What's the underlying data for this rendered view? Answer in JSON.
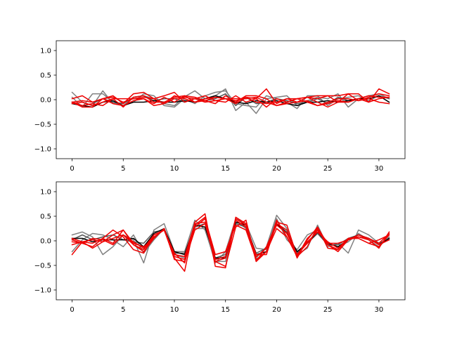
{
  "chart_data": [
    {
      "type": "line",
      "title": "",
      "xlabel": "",
      "ylabel": "",
      "xlim": [
        -1.55,
        32.55
      ],
      "ylim": [
        -1.2,
        1.2
      ],
      "xticks": [
        0,
        5,
        10,
        15,
        20,
        25,
        30
      ],
      "yticks": [
        -1.0,
        -0.5,
        0.0,
        0.5,
        1.0
      ],
      "xtick_labels": [
        "0",
        "5",
        "10",
        "15",
        "20",
        "25",
        "30"
      ],
      "ytick_labels": [
        "−1.0",
        "−0.5",
        "0.0",
        "0.5",
        "1.0"
      ],
      "grid": false,
      "x": [
        0,
        1,
        2,
        3,
        4,
        5,
        6,
        7,
        8,
        9,
        10,
        11,
        12,
        13,
        14,
        15,
        16,
        17,
        18,
        19,
        20,
        21,
        22,
        23,
        24,
        25,
        26,
        27,
        28,
        29,
        30,
        31
      ],
      "series": [
        {
          "color": "#808080",
          "values": [
            0.15,
            -0.05,
            -0.12,
            0.18,
            -0.08,
            -0.12,
            0.05,
            0.08,
            0.02,
            -0.08,
            -0.12,
            0.06,
            0.18,
            0.02,
            0.08,
            0.22,
            -0.22,
            -0.05,
            -0.28,
            0.02,
            0.05,
            0.08,
            -0.12,
            -0.02,
            0.05,
            0.02,
            0.12,
            -0.15,
            0.02,
            0.08,
            0.12,
            0.02
          ]
        },
        {
          "color": "#808080",
          "values": [
            0.05,
            -0.15,
            0.12,
            0.12,
            -0.05,
            -0.12,
            -0.05,
            0.12,
            0.08,
            -0.12,
            -0.15,
            0.02,
            -0.08,
            0.08,
            0.15,
            0.18,
            -0.08,
            -0.12,
            -0.15,
            0.08,
            0.02,
            -0.05,
            -0.18,
            0.08,
            0.08,
            -0.12,
            0.02,
            0.05,
            0.08,
            -0.02,
            0.08,
            -0.05
          ]
        },
        {
          "color": "#555555",
          "values": [
            -0.05,
            -0.12,
            -0.08,
            0.02,
            -0.05,
            -0.08,
            0.05,
            0.08,
            -0.02,
            0.02,
            0.02,
            -0.05,
            0.02,
            -0.02,
            0.02,
            0.12,
            -0.12,
            0.05,
            -0.08,
            -0.05,
            0.02,
            -0.02,
            -0.08,
            -0.05,
            0.02,
            -0.08,
            0.05,
            -0.02,
            0.02,
            0.02,
            0.08,
            0.02
          ]
        },
        {
          "color": "#000000",
          "values": [
            -0.08,
            -0.12,
            -0.15,
            -0.05,
            -0.02,
            -0.12,
            -0.05,
            -0.05,
            -0.02,
            -0.05,
            -0.05,
            -0.02,
            -0.05,
            0.02,
            0.08,
            0.02,
            -0.05,
            -0.08,
            -0.02,
            -0.05,
            -0.02,
            -0.08,
            -0.12,
            -0.05,
            -0.05,
            -0.02,
            -0.05,
            -0.02,
            0.02,
            0.02,
            0.08,
            -0.05
          ]
        },
        {
          "color": "#ee0000",
          "values": [
            -0.05,
            -0.15,
            -0.15,
            0.02,
            0.08,
            -0.08,
            0.12,
            0.15,
            0.02,
            0.08,
            0.15,
            -0.05,
            0.02,
            0.08,
            -0.02,
            -0.05,
            0.08,
            -0.05,
            0.02,
            0.22,
            -0.08,
            0.02,
            -0.05,
            0.05,
            0.08,
            0.08,
            0.08,
            0.12,
            0.12,
            -0.05,
            0.22,
            0.12
          ]
        },
        {
          "color": "#ee0000",
          "values": [
            0.02,
            0.08,
            -0.05,
            0.02,
            0.05,
            -0.05,
            0.02,
            0.02,
            -0.08,
            0.05,
            -0.05,
            0.08,
            0.05,
            -0.02,
            -0.08,
            0.08,
            -0.05,
            0.08,
            0.08,
            0.02,
            -0.12,
            -0.05,
            0.02,
            0.05,
            0.02,
            0.08,
            -0.05,
            -0.05,
            0.02,
            0.08,
            0.05,
            0.05
          ]
        },
        {
          "color": "#ee0000",
          "values": [
            -0.05,
            -0.02,
            -0.05,
            0.02,
            -0.08,
            -0.12,
            -0.02,
            0.02,
            -0.12,
            -0.08,
            0.08,
            0.02,
            -0.05,
            0.02,
            0.05,
            0.02,
            0.02,
            0.02,
            0.05,
            -0.05,
            -0.12,
            -0.08,
            -0.05,
            -0.02,
            -0.12,
            -0.05,
            0.02,
            0.02,
            -0.02,
            0.02,
            -0.05,
            -0.08
          ]
        },
        {
          "color": "#ee0000",
          "values": [
            -0.08,
            -0.05,
            -0.12,
            -0.05,
            0.02,
            0.02,
            0.02,
            0.05,
            0.02,
            -0.08,
            0.02,
            0.05,
            0.02,
            -0.05,
            -0.02,
            0.02,
            -0.02,
            0.05,
            -0.05,
            -0.08,
            -0.05,
            0.02,
            0.02,
            -0.05,
            -0.12,
            -0.08,
            -0.02,
            -0.05,
            0.02,
            -0.05,
            0.02,
            0.05
          ]
        },
        {
          "color": "#ee0000",
          "values": [
            -0.05,
            -0.12,
            -0.08,
            -0.12,
            0.02,
            -0.15,
            0.05,
            0.08,
            -0.05,
            -0.05,
            0.05,
            0.08,
            -0.05,
            -0.02,
            0.05,
            0.02,
            -0.08,
            0.05,
            0.02,
            -0.15,
            0.02,
            -0.05,
            0.02,
            0.05,
            -0.05,
            -0.15,
            -0.05,
            0.12,
            -0.02,
            0.05,
            0.12,
            0.08
          ]
        }
      ]
    },
    {
      "type": "line",
      "title": "",
      "xlabel": "",
      "ylabel": "",
      "xlim": [
        -1.55,
        32.55
      ],
      "ylim": [
        -1.2,
        1.2
      ],
      "xticks": [
        0,
        5,
        10,
        15,
        20,
        25,
        30
      ],
      "yticks": [
        -1.0,
        -0.5,
        0.0,
        0.5,
        1.0
      ],
      "xtick_labels": [
        "0",
        "5",
        "10",
        "15",
        "20",
        "25",
        "30"
      ],
      "ytick_labels": [
        "−1.0",
        "−0.5",
        "0.0",
        "0.5",
        "1.0"
      ],
      "grid": false,
      "x": [
        0,
        1,
        2,
        3,
        4,
        5,
        6,
        7,
        8,
        9,
        10,
        11,
        12,
        13,
        14,
        15,
        16,
        17,
        18,
        19,
        20,
        21,
        22,
        23,
        24,
        25,
        26,
        27,
        28,
        29,
        30,
        31
      ],
      "series": [
        {
          "color": "#808080",
          "values": [
            0.12,
            0.18,
            0.08,
            -0.28,
            -0.12,
            0.12,
            0.02,
            -0.45,
            0.22,
            0.35,
            -0.22,
            -0.22,
            0.42,
            0.22,
            -0.42,
            -0.42,
            0.42,
            0.25,
            -0.35,
            -0.12,
            0.52,
            0.25,
            -0.28,
            -0.15,
            0.32,
            -0.12,
            -0.05,
            -0.25,
            0.22,
            0.12,
            -0.05,
            0.05
          ]
        },
        {
          "color": "#808080",
          "values": [
            -0.22,
            0.02,
            0.15,
            0.12,
            0.02,
            -0.12,
            0.12,
            -0.25,
            0.02,
            0.25,
            -0.28,
            -0.35,
            0.25,
            0.25,
            -0.45,
            -0.22,
            0.45,
            0.35,
            -0.15,
            -0.18,
            0.45,
            0.02,
            -0.18,
            0.12,
            0.22,
            -0.05,
            -0.12,
            -0.02,
            0.15,
            0.02,
            -0.12,
            0.08
          ]
        },
        {
          "color": "#555555",
          "values": [
            0.02,
            0.12,
            0.02,
            0.08,
            0.12,
            0.02,
            -0.02,
            -0.05,
            0.18,
            0.22,
            -0.25,
            -0.25,
            0.28,
            0.35,
            -0.35,
            -0.28,
            0.35,
            0.28,
            -0.25,
            -0.15,
            0.35,
            0.18,
            -0.25,
            -0.05,
            0.15,
            -0.08,
            -0.08,
            0.05,
            0.12,
            0.05,
            -0.05,
            0.02
          ]
        },
        {
          "color": "#000000",
          "values": [
            0.05,
            0.05,
            -0.02,
            0.02,
            0.02,
            0.02,
            0.05,
            -0.12,
            0.15,
            0.25,
            -0.22,
            -0.28,
            0.32,
            0.28,
            -0.35,
            -0.35,
            0.38,
            0.32,
            -0.28,
            -0.22,
            0.35,
            0.15,
            -0.22,
            -0.05,
            0.18,
            -0.05,
            -0.12,
            0.02,
            0.12,
            0.05,
            -0.08,
            0.05
          ]
        },
        {
          "color": "#ee0000",
          "values": [
            -0.02,
            -0.05,
            -0.12,
            0.05,
            0.22,
            0.08,
            -0.18,
            -0.25,
            0.12,
            0.22,
            -0.35,
            -0.62,
            0.38,
            0.55,
            -0.52,
            -0.55,
            0.48,
            0.35,
            -0.42,
            -0.12,
            0.35,
            0.22,
            -0.35,
            0.02,
            0.28,
            -0.15,
            -0.18,
            0.05,
            0.08,
            0.02,
            -0.15,
            0.18
          ]
        },
        {
          "color": "#ee0000",
          "values": [
            -0.28,
            -0.02,
            -0.15,
            -0.02,
            0.12,
            0.22,
            -0.08,
            -0.22,
            0.05,
            0.25,
            -0.38,
            -0.42,
            0.22,
            0.35,
            -0.42,
            -0.52,
            0.28,
            0.42,
            -0.42,
            -0.22,
            0.42,
            0.08,
            -0.32,
            -0.12,
            0.28,
            -0.08,
            -0.18,
            0.05,
            0.05,
            -0.05,
            -0.12,
            0.12
          ]
        },
        {
          "color": "#ee0000",
          "values": [
            0.05,
            -0.02,
            0.02,
            -0.02,
            0.05,
            0.12,
            -0.02,
            -0.15,
            0.12,
            0.22,
            -0.25,
            -0.45,
            0.32,
            0.48,
            -0.38,
            -0.32,
            0.45,
            0.32,
            -0.32,
            -0.15,
            0.32,
            0.15,
            -0.28,
            -0.05,
            0.22,
            -0.08,
            -0.22,
            0.02,
            0.12,
            0.05,
            -0.05,
            0.15
          ]
        },
        {
          "color": "#ee0000",
          "values": [
            -0.08,
            -0.02,
            -0.05,
            0.05,
            -0.05,
            0.22,
            -0.05,
            -0.12,
            0.05,
            0.25,
            -0.32,
            -0.38,
            0.28,
            0.45,
            -0.28,
            -0.22,
            0.32,
            0.22,
            -0.38,
            -0.22,
            0.25,
            0.08,
            -0.28,
            -0.02,
            0.18,
            -0.02,
            -0.15,
            0.05,
            0.05,
            -0.05,
            0.02,
            0.12
          ]
        },
        {
          "color": "#ee0000",
          "values": [
            0.02,
            -0.05,
            0.05,
            0.02,
            -0.08,
            0.12,
            -0.08,
            -0.18,
            0.08,
            0.22,
            -0.28,
            -0.32,
            0.35,
            0.38,
            -0.42,
            -0.35,
            0.42,
            0.28,
            -0.28,
            -0.28,
            0.38,
            0.32,
            -0.32,
            0.05,
            0.25,
            -0.05,
            -0.05,
            0.02,
            0.08,
            0.05,
            -0.08,
            0.02
          ]
        }
      ]
    }
  ]
}
